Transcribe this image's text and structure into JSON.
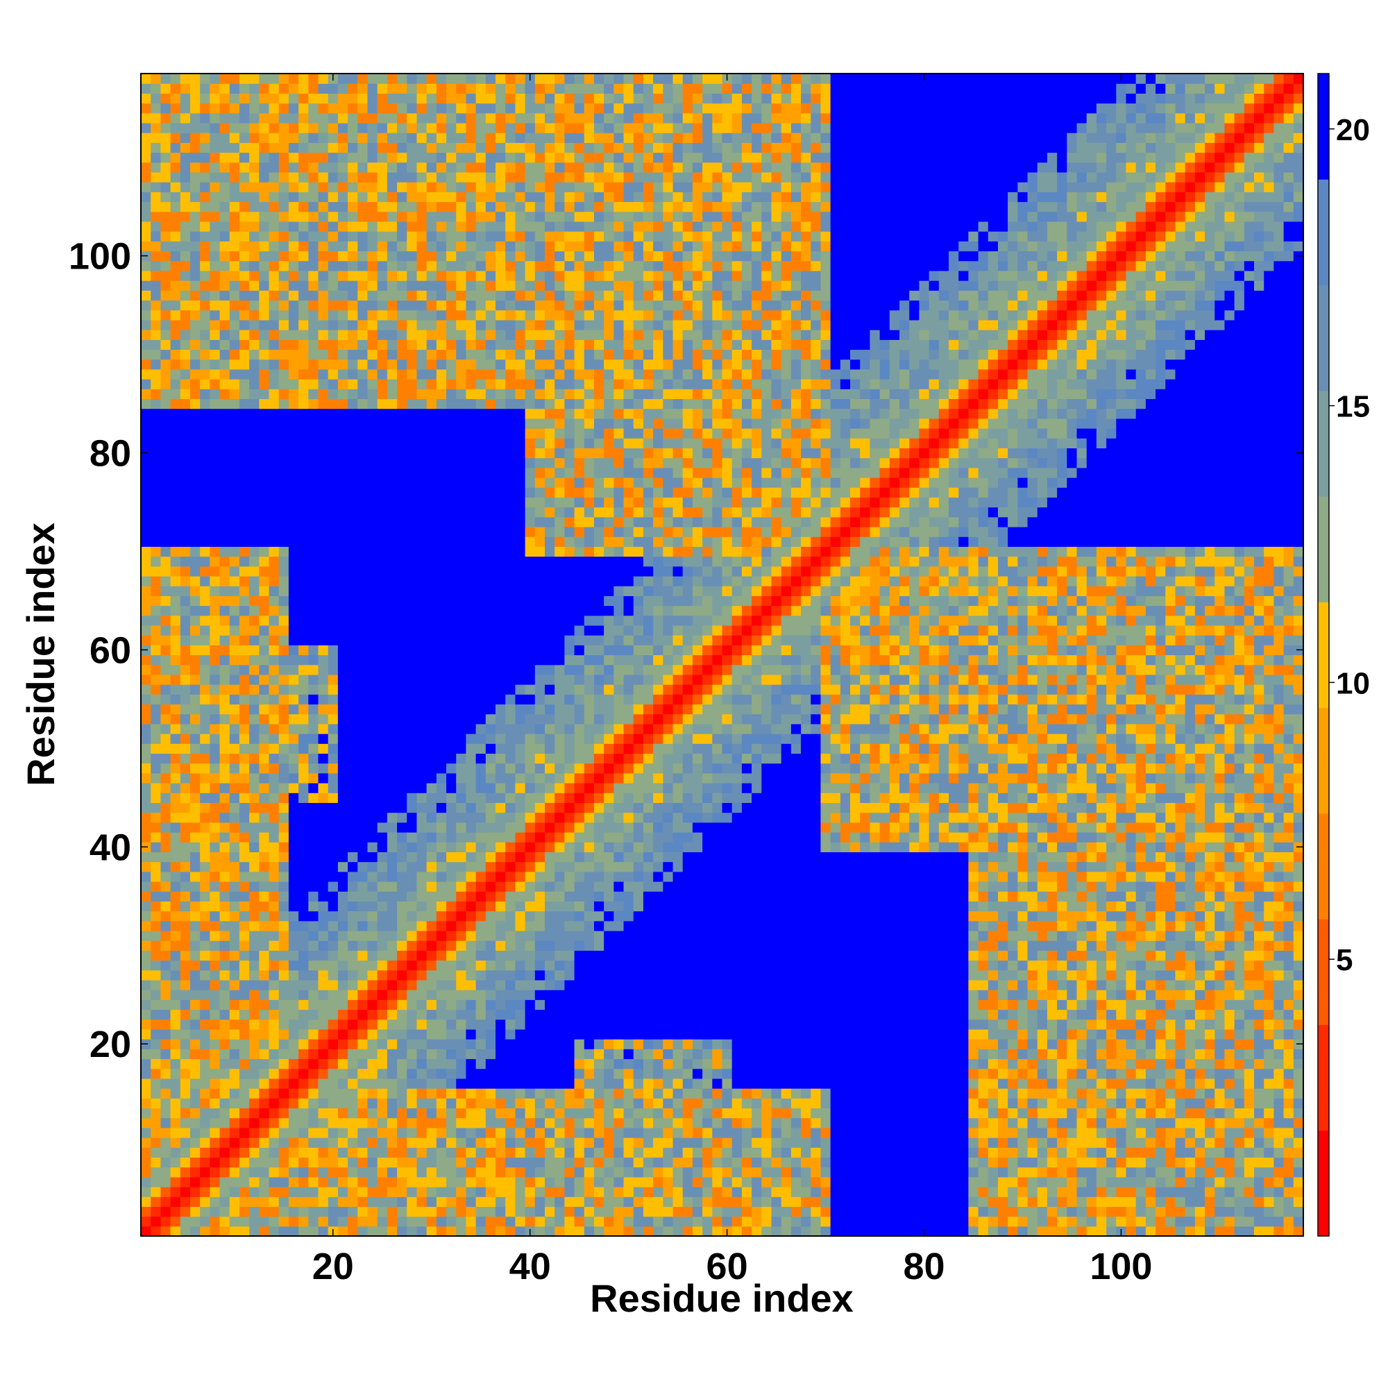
{
  "chart_data": {
    "type": "heatmap",
    "description_of_values": "residue-residue distance map (symmetric), color = distance",
    "xlabel": "Residue index",
    "ylabel": "Residue index",
    "x_range": [
      1,
      118
    ],
    "y_range": [
      1,
      118
    ],
    "x_ticks": [
      20,
      40,
      60,
      80,
      100
    ],
    "y_ticks": [
      20,
      40,
      60,
      80,
      100
    ],
    "x_tick_labels": [
      "20",
      "40",
      "60",
      "80",
      "100"
    ],
    "y_tick_labels": [
      "20",
      "40",
      "60",
      "80",
      "100"
    ],
    "colorbar": {
      "range": [
        0,
        21
      ],
      "ticks": [
        5,
        10,
        15,
        20
      ],
      "tick_labels": [
        "5",
        "10",
        "15",
        "20"
      ],
      "colors": [
        "#ff0000",
        "#ff2a00",
        "#ff5a00",
        "#ff8000",
        "#ffa000",
        "#ffbf00",
        "#8faa86",
        "#7b9fa1",
        "#6a8fb5",
        "#5b88c2",
        "#0000ff"
      ]
    },
    "structure_summary": {
      "diagonal": "distance ~0 (red) along i=j with orange band |i-j|<=2",
      "helix_segments_near_diagonal": [
        [
          1,
          40
        ],
        [
          48,
          68
        ],
        [
          84,
          118
        ]
      ],
      "off_diagonal_contact_regions": [
        {
          "x": [
            1,
            40
          ],
          "y": [
            85,
            118
          ],
          "min_distance": 6
        },
        {
          "x": [
            40,
            70
          ],
          "y": [
            85,
            118
          ],
          "min_distance": 6
        },
        {
          "x": [
            1,
            15
          ],
          "y": [
            1,
            70
          ],
          "min_distance": 6
        },
        {
          "x": [
            70,
            118
          ],
          "y": [
            40,
            70
          ],
          "min_distance": 6
        },
        {
          "x": [
            45,
            60
          ],
          "y": [
            1,
            20
          ],
          "min_distance": 8
        },
        {
          "x": [
            85,
            118
          ],
          "y": [
            1,
            20
          ],
          "min_distance": 8
        }
      ],
      "far_regions_color": "#0000ff"
    }
  }
}
